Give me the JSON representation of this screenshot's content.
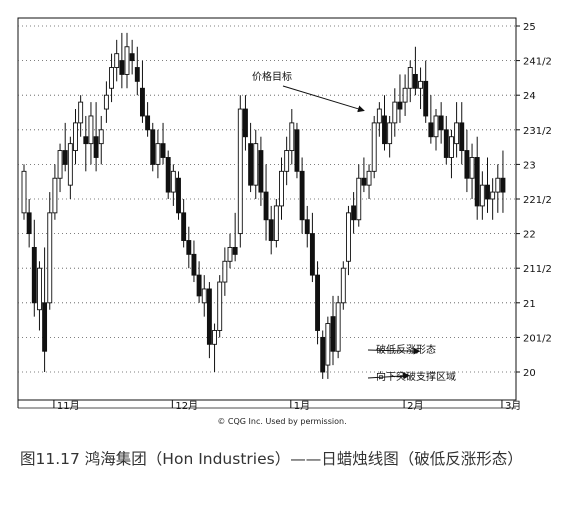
{
  "caption": "图11.17 鸿海集团（Hon Industries）——日蜡烛线图（破低反涨形态）",
  "copyright": "© CQG Inc. Used by permission.",
  "chart_data": {
    "type": "candlestick",
    "title": "",
    "xlabel": "",
    "ylabel": "",
    "ylim": [
      19.6,
      25.1
    ],
    "grid": true,
    "y_ticks": [
      {
        "value": 25,
        "label": "25"
      },
      {
        "value": 24.5,
        "label": "241/2"
      },
      {
        "value": 24,
        "label": "24"
      },
      {
        "value": 23.5,
        "label": "231/2"
      },
      {
        "value": 23,
        "label": "23"
      },
      {
        "value": 22.5,
        "label": "221/2"
      },
      {
        "value": 22,
        "label": "22"
      },
      {
        "value": 21.5,
        "label": "211/2"
      },
      {
        "value": 21,
        "label": "21"
      },
      {
        "value": 20.5,
        "label": "201/2"
      },
      {
        "value": 20,
        "label": "20"
      }
    ],
    "months": [
      {
        "label": "11月",
        "index": 6
      },
      {
        "label": "12月",
        "index": 29
      },
      {
        "label": "1月",
        "index": 52
      },
      {
        "label": "2月",
        "index": 74
      },
      {
        "label": "3月",
        "index": 93
      }
    ],
    "annotations": [
      {
        "text": "价格目标",
        "target_index": 66,
        "target_price": 23.72
      },
      {
        "text": "破低反涨形态",
        "target_index": 76,
        "target_price": 20.3
      },
      {
        "text": "向下突破支撑区域",
        "target_index": 74,
        "target_price": 19.95
      }
    ],
    "candles": [
      [
        0,
        22.3,
        23.0,
        22.2,
        22.9
      ],
      [
        1,
        22.3,
        22.5,
        21.8,
        22.0
      ],
      [
        2,
        21.8,
        22.2,
        20.8,
        21.0
      ],
      [
        3,
        20.9,
        21.6,
        20.6,
        21.5
      ],
      [
        4,
        21.0,
        21.8,
        20.0,
        20.3
      ],
      [
        5,
        21.0,
        22.6,
        20.9,
        22.3
      ],
      [
        6,
        22.3,
        23.0,
        22.2,
        22.8
      ],
      [
        7,
        22.8,
        23.3,
        22.6,
        23.2
      ],
      [
        8,
        23.2,
        23.6,
        22.9,
        23.0
      ],
      [
        9,
        22.7,
        23.4,
        22.5,
        23.3
      ],
      [
        10,
        23.2,
        23.8,
        23.0,
        23.6
      ],
      [
        11,
        23.6,
        24.0,
        23.4,
        23.9
      ],
      [
        12,
        23.4,
        23.7,
        22.9,
        23.3
      ],
      [
        13,
        23.3,
        23.9,
        23.0,
        23.7
      ],
      [
        14,
        23.4,
        23.9,
        22.9,
        23.1
      ],
      [
        15,
        23.3,
        23.7,
        23.0,
        23.5
      ],
      [
        16,
        23.8,
        24.2,
        23.6,
        24.0
      ],
      [
        17,
        24.1,
        24.6,
        23.9,
        24.4
      ],
      [
        18,
        24.4,
        24.8,
        24.2,
        24.6
      ],
      [
        19,
        24.5,
        24.9,
        24.1,
        24.3
      ],
      [
        20,
        24.3,
        24.9,
        24.1,
        24.7
      ],
      [
        21,
        24.6,
        24.8,
        24.3,
        24.5
      ],
      [
        22,
        24.4,
        24.7,
        24.0,
        24.2
      ],
      [
        23,
        24.1,
        24.5,
        23.6,
        23.7
      ],
      [
        24,
        23.7,
        23.9,
        23.4,
        23.5
      ],
      [
        25,
        23.5,
        23.6,
        22.9,
        23.0
      ],
      [
        26,
        23.0,
        23.5,
        22.8,
        23.3
      ],
      [
        27,
        23.3,
        23.6,
        23.0,
        23.1
      ],
      [
        28,
        23.1,
        23.2,
        22.5,
        22.6
      ],
      [
        29,
        22.6,
        23.0,
        22.4,
        22.9
      ],
      [
        30,
        22.8,
        22.9,
        22.2,
        22.3
      ],
      [
        31,
        22.3,
        22.5,
        21.8,
        21.9
      ],
      [
        32,
        21.9,
        22.1,
        21.5,
        21.7
      ],
      [
        33,
        21.7,
        21.9,
        21.3,
        21.4
      ],
      [
        34,
        21.4,
        21.6,
        21.0,
        21.1
      ],
      [
        35,
        21.0,
        21.4,
        20.8,
        21.2
      ],
      [
        36,
        21.2,
        21.3,
        20.2,
        20.4
      ],
      [
        37,
        20.4,
        20.7,
        20.0,
        20.6
      ],
      [
        38,
        20.6,
        21.4,
        20.5,
        21.3
      ],
      [
        39,
        21.3,
        21.8,
        21.1,
        21.6
      ],
      [
        40,
        21.6,
        22.0,
        21.5,
        21.8
      ],
      [
        41,
        21.8,
        22.3,
        21.6,
        21.7
      ],
      [
        42,
        22.0,
        24.0,
        21.8,
        23.8
      ],
      [
        43,
        23.8,
        24.0,
        23.2,
        23.4
      ],
      [
        44,
        23.3,
        23.6,
        22.6,
        22.7
      ],
      [
        45,
        22.7,
        23.5,
        22.5,
        23.3
      ],
      [
        46,
        23.2,
        23.4,
        22.4,
        22.6
      ],
      [
        47,
        22.6,
        23.0,
        21.9,
        22.2
      ],
      [
        48,
        22.2,
        22.4,
        21.7,
        21.9
      ],
      [
        49,
        21.9,
        22.5,
        21.8,
        22.4
      ],
      [
        50,
        22.4,
        23.1,
        22.2,
        22.9
      ],
      [
        51,
        22.9,
        23.4,
        22.7,
        23.2
      ],
      [
        52,
        23.2,
        23.8,
        23.0,
        23.6
      ],
      [
        53,
        23.5,
        23.6,
        22.8,
        22.9
      ],
      [
        54,
        22.9,
        23.1,
        22.0,
        22.2
      ],
      [
        55,
        22.2,
        22.4,
        21.8,
        22.0
      ],
      [
        56,
        22.0,
        22.3,
        21.3,
        21.4
      ],
      [
        57,
        21.4,
        21.6,
        20.4,
        20.6
      ],
      [
        58,
        20.5,
        20.6,
        19.9,
        20.0
      ],
      [
        59,
        20.1,
        20.8,
        19.9,
        20.7
      ],
      [
        60,
        20.8,
        21.1,
        20.1,
        20.3
      ],
      [
        61,
        20.3,
        21.1,
        20.2,
        21.0
      ],
      [
        62,
        21.0,
        21.6,
        20.9,
        21.5
      ],
      [
        63,
        21.6,
        22.4,
        21.4,
        22.3
      ],
      [
        64,
        22.4,
        22.6,
        22.0,
        22.2
      ],
      [
        65,
        22.2,
        23.0,
        22.1,
        22.8
      ],
      [
        66,
        22.8,
        23.1,
        22.6,
        22.7
      ],
      [
        67,
        22.7,
        23.0,
        22.5,
        22.9
      ],
      [
        68,
        22.9,
        23.7,
        22.8,
        23.6
      ],
      [
        69,
        23.6,
        23.9,
        23.4,
        23.8
      ],
      [
        70,
        23.7,
        24.0,
        23.2,
        23.3
      ],
      [
        71,
        23.3,
        23.7,
        23.1,
        23.6
      ],
      [
        72,
        23.6,
        24.1,
        23.4,
        23.9
      ],
      [
        73,
        23.9,
        24.3,
        23.6,
        23.8
      ],
      [
        74,
        23.9,
        24.3,
        23.7,
        24.1
      ],
      [
        75,
        24.1,
        24.5,
        23.9,
        24.4
      ],
      [
        76,
        24.3,
        24.7,
        24.0,
        24.1
      ],
      [
        77,
        24.1,
        24.4,
        23.8,
        24.2
      ],
      [
        78,
        24.2,
        24.5,
        23.6,
        23.7
      ],
      [
        79,
        23.6,
        24.0,
        23.3,
        23.4
      ],
      [
        80,
        23.4,
        23.8,
        23.2,
        23.7
      ],
      [
        81,
        23.7,
        23.9,
        23.3,
        23.5
      ],
      [
        82,
        23.5,
        23.7,
        23.0,
        23.1
      ],
      [
        83,
        23.1,
        23.5,
        22.8,
        23.4
      ],
      [
        84,
        23.3,
        23.9,
        23.1,
        23.6
      ],
      [
        85,
        23.6,
        23.9,
        23.0,
        23.2
      ],
      [
        86,
        23.2,
        23.5,
        22.6,
        22.8
      ],
      [
        87,
        22.8,
        23.3,
        22.5,
        23.1
      ],
      [
        88,
        23.1,
        23.4,
        22.2,
        22.4
      ],
      [
        89,
        22.4,
        22.9,
        22.2,
        22.7
      ],
      [
        90,
        22.7,
        23.1,
        22.3,
        22.5
      ],
      [
        91,
        22.5,
        22.8,
        22.2,
        22.6
      ],
      [
        92,
        22.6,
        23.0,
        22.3,
        22.8
      ],
      [
        93,
        22.8,
        23.2,
        22.3,
        22.6
      ]
    ]
  }
}
